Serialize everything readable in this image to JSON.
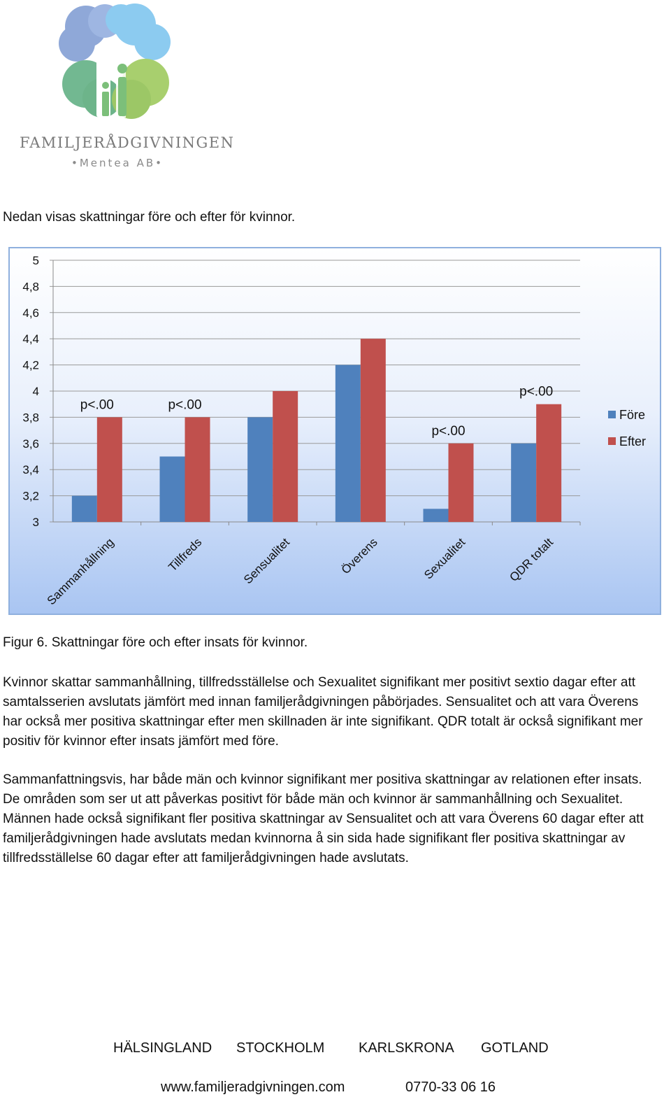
{
  "logo": {
    "name": "FAMILJERÅDGIVNINGEN",
    "subtitle": "•Mentea AB•"
  },
  "intro": "Nedan visas skattningar före och efter för kvinnor.",
  "chart_data": {
    "type": "bar",
    "categories": [
      "Sammanhållning",
      "Tillfreds",
      "Sensualitet",
      "Överens",
      "Sexualitet",
      "QDR totalt"
    ],
    "series": [
      {
        "name": "Före",
        "color": "#4f81bd",
        "values": [
          3.2,
          3.5,
          3.8,
          4.2,
          3.1,
          3.6
        ]
      },
      {
        "name": "Efter",
        "color": "#c0504d",
        "values": [
          3.8,
          3.8,
          4.0,
          4.4,
          3.6,
          3.9
        ]
      }
    ],
    "ylim": [
      3,
      5
    ],
    "yticks": [
      "3",
      "3,2",
      "3,4",
      "3,6",
      "3,8",
      "4",
      "4,2",
      "4,4",
      "4,6",
      "4,8",
      "5"
    ],
    "annotations": [
      {
        "category": "Sammanhållning",
        "text": "p<.00"
      },
      {
        "category": "Tillfreds",
        "text": "p<.00"
      },
      {
        "category": "Sexualitet",
        "text": "p<.00"
      },
      {
        "category": "QDR totalt",
        "text": "p<.00"
      }
    ],
    "grid": true,
    "legend": "right"
  },
  "caption": "Figur 6. Skattningar före och efter insats för kvinnor.",
  "paragraph1": "Kvinnor skattar sammanhållning, tillfredsställelse och Sexualitet signifikant mer positivt sextio dagar efter att samtalsserien avslutats jämfört med innan familjerådgivningen påbörjades. Sensualitet och att vara Överens har också mer positiva skattningar efter men skillnaden är inte signifikant. QDR totalt är också signifikant mer positiv för kvinnor efter insats jämfört med före.",
  "paragraph2": "Sammanfattningsvis, har både män och kvinnor signifikant mer positiva skattningar av relationen efter insats. De områden som ser ut att påverkas positivt för både män och kvinnor är sammanhållning och Sexualitet. Männen hade också signifikant fler positiva skattningar av Sensualitet och att vara Överens 60 dagar efter att familjerådgivningen hade avslutats medan kvinnorna å sin sida hade signifikant fler positiva skattningar av tillfredsställelse 60 dagar efter att familjerådgivningen hade avslutats.",
  "footer": {
    "regions": [
      "HÄLSINGLAND",
      "STOCKHOLM",
      "KARLSKRONA",
      "GOTLAND"
    ],
    "website": "www.familjeradgivningen.com",
    "phone": "0770-33 06 16"
  }
}
